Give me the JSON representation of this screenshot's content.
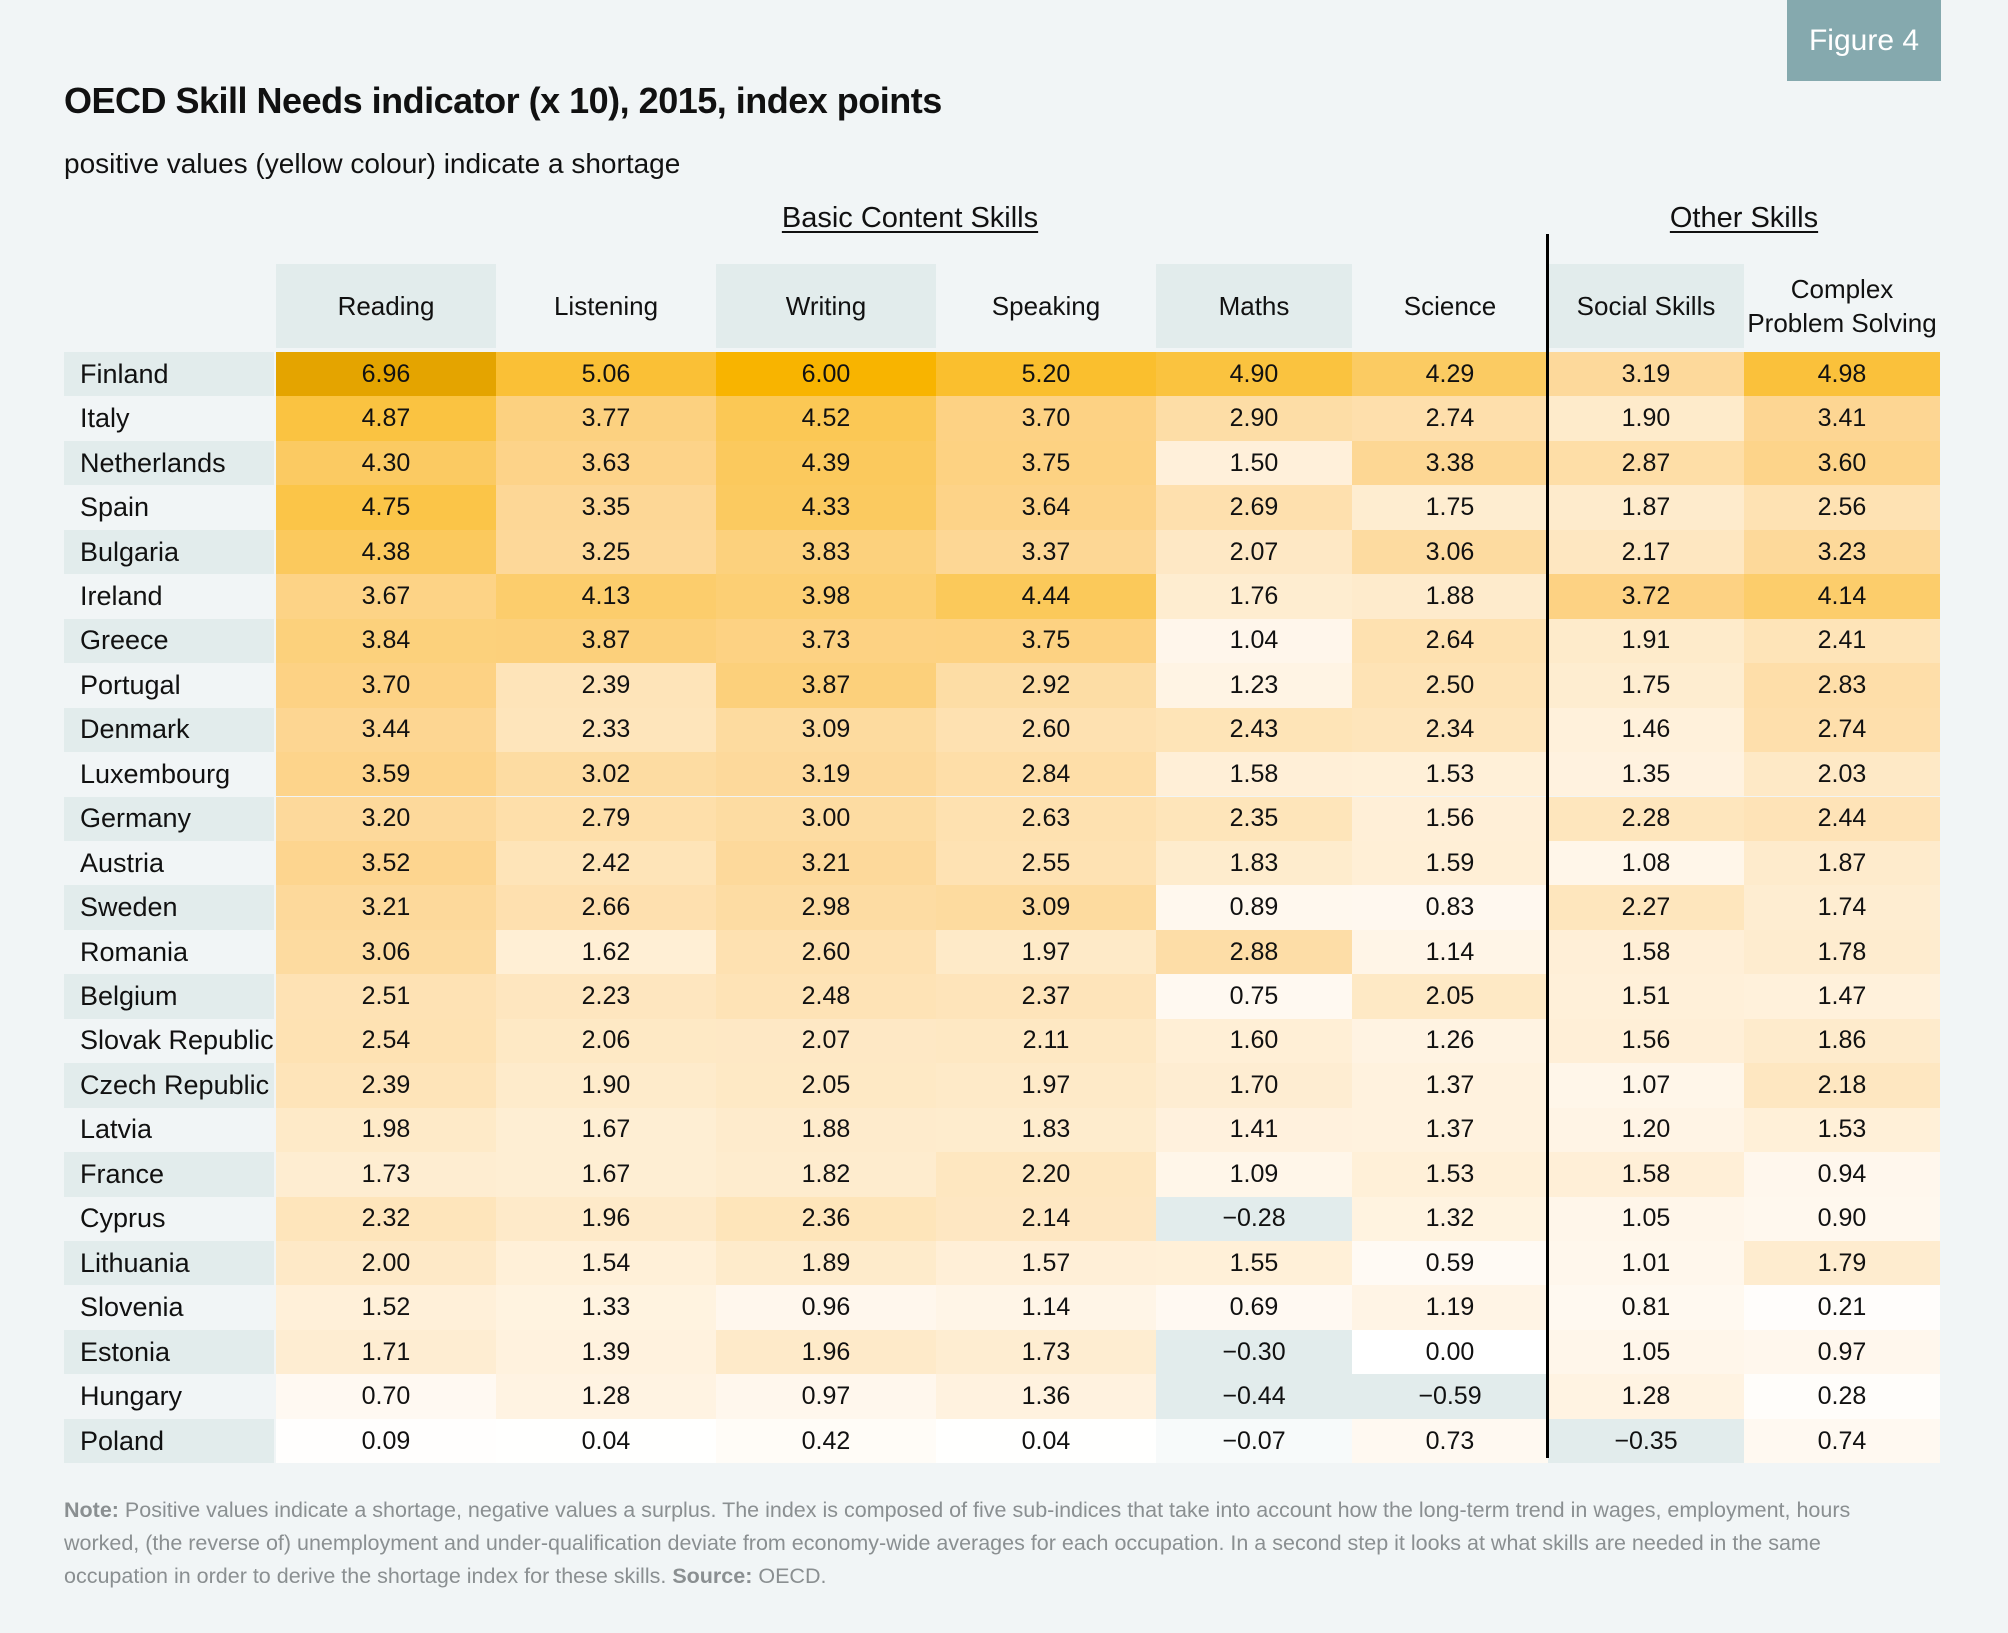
{
  "badge": "Figure 4",
  "title": "OECD Skill Needs indicator (x 10), 2015, index points",
  "subtitle": "positive values (yellow colour) indicate a shortage",
  "note": {
    "note_label": "Note:",
    "note_text": " Positive values indicate a shortage, negative values a surplus. The index is composed of five sub-indices that take into account how the long-term trend in wages, employment, hours worked, (the reverse of) unemployment and under-qualification deviate from economy-wide averages for each occupation. In a second step it looks at what skills are needed in the same occupation in order to derive the shortage index for these skills. ",
    "source_label": "Source:",
    "source_text": " OECD."
  },
  "colors": {
    "max": "#e3a300",
    "high": "#f8b400",
    "mid": "#fdd590",
    "low": "#fff7ec",
    "zero": "#ffffff",
    "negative": "#e2ecec"
  },
  "chart_data": {
    "type": "heatmap",
    "title": "OECD Skill Needs indicator (x 10), 2015, index points",
    "subtitle": "positive values (yellow colour) indicate a shortage",
    "groups": [
      {
        "name": "Basic Content Skills",
        "columns": [
          "Reading",
          "Listening",
          "Writing",
          "Speaking",
          "Maths",
          "Science"
        ]
      },
      {
        "name": "Other Skills",
        "columns": [
          "Social Skills",
          "Complex Problem Solving"
        ]
      }
    ],
    "columns": [
      "Reading",
      "Listening",
      "Writing",
      "Speaking",
      "Maths",
      "Science",
      "Social Skills",
      "Complex Problem Solving"
    ],
    "column_display": [
      "Reading",
      "Listening",
      "Writing",
      "Speaking",
      "Maths",
      "Science",
      "Social Skills",
      "Complex\nProblem Solving"
    ],
    "rows": [
      "Finland",
      "Italy",
      "Netherlands",
      "Spain",
      "Bulgaria",
      "Ireland",
      "Greece",
      "Portugal",
      "Denmark",
      "Luxembourg",
      "Germany",
      "Austria",
      "Sweden",
      "Romania",
      "Belgium",
      "Slovak Republic",
      "Czech Republic",
      "Latvia",
      "France",
      "Cyprus",
      "Lithuania",
      "Slovenia",
      "Estonia",
      "Hungary",
      "Poland"
    ],
    "values": [
      [
        6.96,
        5.06,
        6.0,
        5.2,
        4.9,
        4.29,
        3.19,
        4.98
      ],
      [
        4.87,
        3.77,
        4.52,
        3.7,
        2.9,
        2.74,
        1.9,
        3.41
      ],
      [
        4.3,
        3.63,
        4.39,
        3.75,
        1.5,
        3.38,
        2.87,
        3.6
      ],
      [
        4.75,
        3.35,
        4.33,
        3.64,
        2.69,
        1.75,
        1.87,
        2.56
      ],
      [
        4.38,
        3.25,
        3.83,
        3.37,
        2.07,
        3.06,
        2.17,
        3.23
      ],
      [
        3.67,
        4.13,
        3.98,
        4.44,
        1.76,
        1.88,
        3.72,
        4.14
      ],
      [
        3.84,
        3.87,
        3.73,
        3.75,
        1.04,
        2.64,
        1.91,
        2.41
      ],
      [
        3.7,
        2.39,
        3.87,
        2.92,
        1.23,
        2.5,
        1.75,
        2.83
      ],
      [
        3.44,
        2.33,
        3.09,
        2.6,
        2.43,
        2.34,
        1.46,
        2.74
      ],
      [
        3.59,
        3.02,
        3.19,
        2.84,
        1.58,
        1.53,
        1.35,
        2.03
      ],
      [
        3.2,
        2.79,
        3.0,
        2.63,
        2.35,
        1.56,
        2.28,
        2.44
      ],
      [
        3.52,
        2.42,
        3.21,
        2.55,
        1.83,
        1.59,
        1.08,
        1.87
      ],
      [
        3.21,
        2.66,
        2.98,
        3.09,
        0.89,
        0.83,
        2.27,
        1.74
      ],
      [
        3.06,
        1.62,
        2.6,
        1.97,
        2.88,
        1.14,
        1.58,
        1.78
      ],
      [
        2.51,
        2.23,
        2.48,
        2.37,
        0.75,
        2.05,
        1.51,
        1.47
      ],
      [
        2.54,
        2.06,
        2.07,
        2.11,
        1.6,
        1.26,
        1.56,
        1.86
      ],
      [
        2.39,
        1.9,
        2.05,
        1.97,
        1.7,
        1.37,
        1.07,
        2.18
      ],
      [
        1.98,
        1.67,
        1.88,
        1.83,
        1.41,
        1.37,
        1.2,
        1.53
      ],
      [
        1.73,
        1.67,
        1.82,
        2.2,
        1.09,
        1.53,
        1.58,
        0.94
      ],
      [
        2.32,
        1.96,
        2.36,
        2.14,
        -0.28,
        1.32,
        1.05,
        0.9
      ],
      [
        2.0,
        1.54,
        1.89,
        1.57,
        1.55,
        0.59,
        1.01,
        1.79
      ],
      [
        1.52,
        1.33,
        0.96,
        1.14,
        0.69,
        1.19,
        0.81,
        0.21
      ],
      [
        1.71,
        1.39,
        1.96,
        1.73,
        -0.3,
        0.0,
        1.05,
        0.97
      ],
      [
        0.7,
        1.28,
        0.97,
        1.36,
        -0.44,
        -0.59,
        1.28,
        0.28
      ],
      [
        0.09,
        0.04,
        0.42,
        0.04,
        -0.07,
        0.73,
        -0.35,
        0.74
      ]
    ],
    "value_range": [
      -0.59,
      6.96
    ],
    "color_scale": "white-to-orange for positive (shortage), grey-blue for negative (surplus)"
  }
}
